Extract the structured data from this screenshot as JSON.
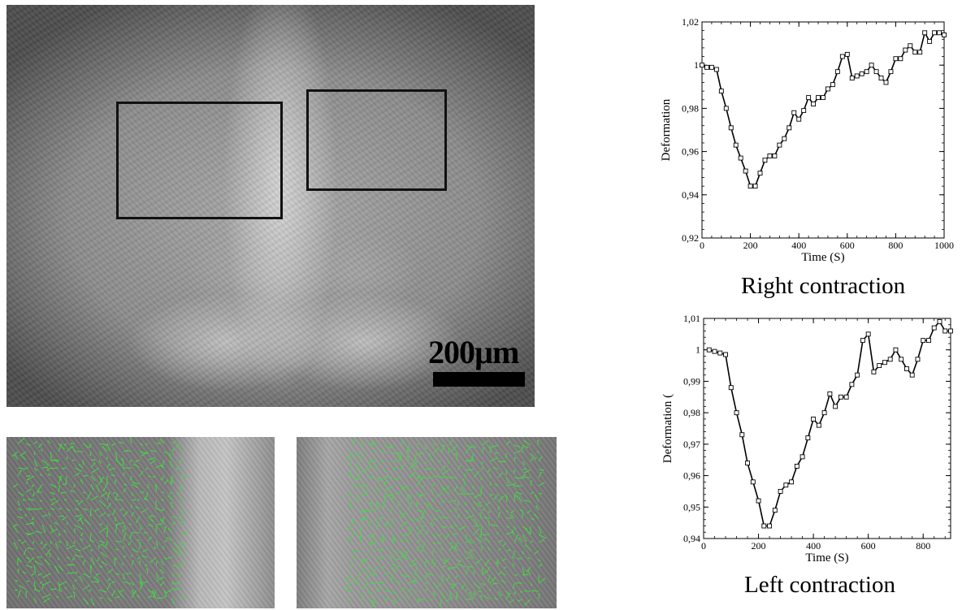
{
  "scale_bar": {
    "label": "200µm"
  },
  "captions": {
    "right": "Right contraction",
    "left": "Left contraction"
  },
  "chart_data": [
    {
      "type": "line",
      "title": "Right contraction",
      "xlabel": "Time (S)",
      "ylabel": "Deformation",
      "xlim": [
        0,
        1000
      ],
      "ylim": [
        0.92,
        1.02
      ],
      "x_ticks": [
        0,
        200,
        400,
        600,
        800,
        1000
      ],
      "y_ticks": [
        0.92,
        0.94,
        0.96,
        0.98,
        1,
        1.02
      ],
      "x_tick_labels": [
        "0",
        "200",
        "400",
        "600",
        "800",
        "1000"
      ],
      "y_tick_labels": [
        "0,92",
        "0,94",
        "0,96",
        "0,98",
        "1",
        "1,02"
      ],
      "grid": false,
      "marker": "open-square",
      "x": [
        0,
        20,
        40,
        60,
        80,
        100,
        120,
        140,
        160,
        180,
        200,
        220,
        240,
        260,
        280,
        300,
        320,
        340,
        360,
        380,
        400,
        420,
        440,
        460,
        480,
        500,
        520,
        540,
        560,
        580,
        600,
        620,
        640,
        660,
        680,
        700,
        720,
        740,
        760,
        780,
        800,
        820,
        840,
        860,
        880,
        900,
        920,
        940,
        960,
        980,
        1000
      ],
      "y": [
        1.0,
        0.999,
        0.999,
        0.998,
        0.988,
        0.98,
        0.971,
        0.963,
        0.957,
        0.951,
        0.944,
        0.944,
        0.95,
        0.956,
        0.958,
        0.958,
        0.963,
        0.966,
        0.971,
        0.978,
        0.975,
        0.979,
        0.985,
        0.982,
        0.985,
        0.985,
        0.989,
        0.991,
        0.997,
        1.004,
        1.005,
        0.994,
        0.995,
        0.996,
        0.997,
        1.0,
        0.997,
        0.994,
        0.992,
        0.997,
        1.003,
        1.003,
        1.007,
        1.009,
        1.006,
        1.006,
        1.015,
        1.011,
        1.015,
        1.015,
        1.014
      ]
    },
    {
      "type": "line",
      "title": "Left contraction",
      "xlabel": "Time (S)",
      "ylabel": "Deformation (",
      "xlim": [
        0,
        900
      ],
      "ylim": [
        0.94,
        1.01
      ],
      "x_ticks": [
        0,
        200,
        400,
        600,
        800
      ],
      "y_ticks": [
        0.94,
        0.95,
        0.96,
        0.97,
        0.98,
        0.99,
        1,
        1.01
      ],
      "x_tick_labels": [
        "0",
        "200",
        "400",
        "600",
        "800"
      ],
      "y_tick_labels": [
        "0,94",
        "0,95",
        "0,96",
        "0,97",
        "0,98",
        "0,99",
        "1",
        "1,01"
      ],
      "grid": false,
      "marker": "open-square",
      "x": [
        20,
        40,
        60,
        80,
        100,
        120,
        140,
        160,
        180,
        200,
        220,
        240,
        260,
        280,
        300,
        320,
        340,
        360,
        380,
        400,
        420,
        440,
        460,
        480,
        500,
        520,
        540,
        560,
        580,
        600,
        620,
        640,
        660,
        680,
        700,
        720,
        740,
        760,
        780,
        800,
        820,
        840,
        860,
        880,
        900
      ],
      "y": [
        1.0,
        0.9995,
        0.999,
        0.9985,
        0.988,
        0.98,
        0.973,
        0.964,
        0.958,
        0.952,
        0.944,
        0.944,
        0.949,
        0.955,
        0.957,
        0.958,
        0.963,
        0.966,
        0.972,
        0.978,
        0.976,
        0.98,
        0.986,
        0.982,
        0.985,
        0.985,
        0.989,
        0.992,
        1.003,
        1.005,
        0.993,
        0.995,
        0.996,
        0.997,
        1.0,
        0.997,
        0.994,
        0.992,
        0.997,
        1.003,
        1.003,
        1.007,
        1.009,
        1.006,
        1.006
      ]
    }
  ]
}
